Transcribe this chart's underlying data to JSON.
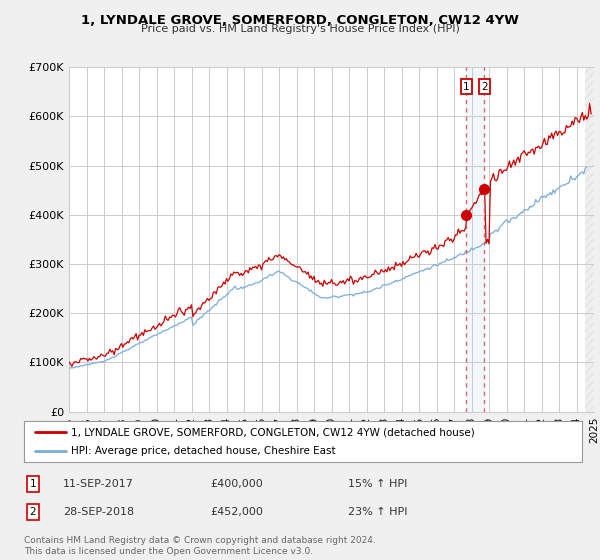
{
  "title": "1, LYNDALE GROVE, SOMERFORD, CONGLETON, CW12 4YW",
  "subtitle": "Price paid vs. HM Land Registry's House Price Index (HPI)",
  "ylim": [
    0,
    700000
  ],
  "yticks": [
    0,
    100000,
    200000,
    300000,
    400000,
    500000,
    600000,
    700000
  ],
  "ytick_labels": [
    "£0",
    "£100K",
    "£200K",
    "£300K",
    "£400K",
    "£500K",
    "£600K",
    "£700K"
  ],
  "background_color": "#f0f0f0",
  "plot_bg_color": "#ffffff",
  "grid_color": "#cccccc",
  "line1_color": "#cc0000",
  "line2_color": "#7aaddc",
  "vline_color": "#dd5555",
  "legend_label1": "1, LYNDALE GROVE, SOMERFORD, CONGLETON, CW12 4YW (detached house)",
  "legend_label2": "HPI: Average price, detached house, Cheshire East",
  "sale1_date": "11-SEP-2017",
  "sale1_price": "£400,000",
  "sale1_hpi": "15% ↑ HPI",
  "sale2_date": "28-SEP-2018",
  "sale2_price": "£452,000",
  "sale2_hpi": "23% ↑ HPI",
  "sale1_year": 2017.71,
  "sale2_year": 2018.74,
  "sale1_price_val": 400000,
  "sale2_price_val": 452000,
  "footnote": "Contains HM Land Registry data © Crown copyright and database right 2024.\nThis data is licensed under the Open Government Licence v3.0.",
  "xlim_start": 1995,
  "xlim_end": 2025,
  "hpi_data_end": 2024.5,
  "prop_data_end": 2024.75
}
